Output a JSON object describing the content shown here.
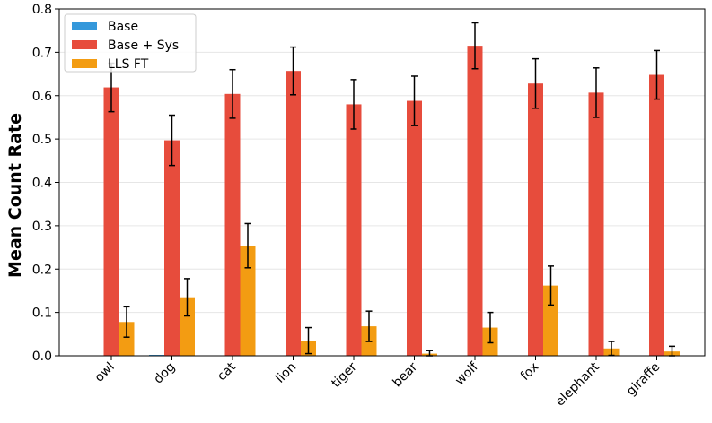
{
  "chart_data": {
    "type": "bar",
    "title": "",
    "xlabel": "",
    "ylabel": "Mean Count Rate",
    "ylim": [
      0,
      0.8
    ],
    "yticks": [
      "0.0",
      "0.1",
      "0.2",
      "0.3",
      "0.4",
      "0.5",
      "0.6",
      "0.7",
      "0.8"
    ],
    "grid": "horizontal",
    "legend_position": "top-left",
    "categories": [
      "owl",
      "dog",
      "cat",
      "lion",
      "tiger",
      "bear",
      "wolf",
      "fox",
      "elephant",
      "giraffe"
    ],
    "series": [
      {
        "name": "Base",
        "color": "#3498db",
        "values": [
          0.0,
          0.002,
          0.0,
          0.0,
          0.0,
          0.0,
          0.0,
          0.0,
          0.0,
          0.0
        ],
        "errors": [
          0,
          0,
          0,
          0,
          0,
          0,
          0,
          0,
          0,
          0
        ]
      },
      {
        "name": "Base + Sys",
        "color": "#e74c3c",
        "values": [
          0.619,
          0.497,
          0.604,
          0.657,
          0.58,
          0.588,
          0.715,
          0.628,
          0.607,
          0.648
        ],
        "errors": [
          0.056,
          0.058,
          0.056,
          0.055,
          0.057,
          0.057,
          0.053,
          0.057,
          0.057,
          0.056
        ]
      },
      {
        "name": "LLS FT",
        "color": "#f39c12",
        "values": [
          0.078,
          0.135,
          0.254,
          0.035,
          0.068,
          0.005,
          0.065,
          0.162,
          0.017,
          0.01
        ],
        "errors": [
          0.035,
          0.043,
          0.051,
          0.03,
          0.035,
          0.007,
          0.035,
          0.045,
          0.016,
          0.012
        ]
      }
    ]
  }
}
